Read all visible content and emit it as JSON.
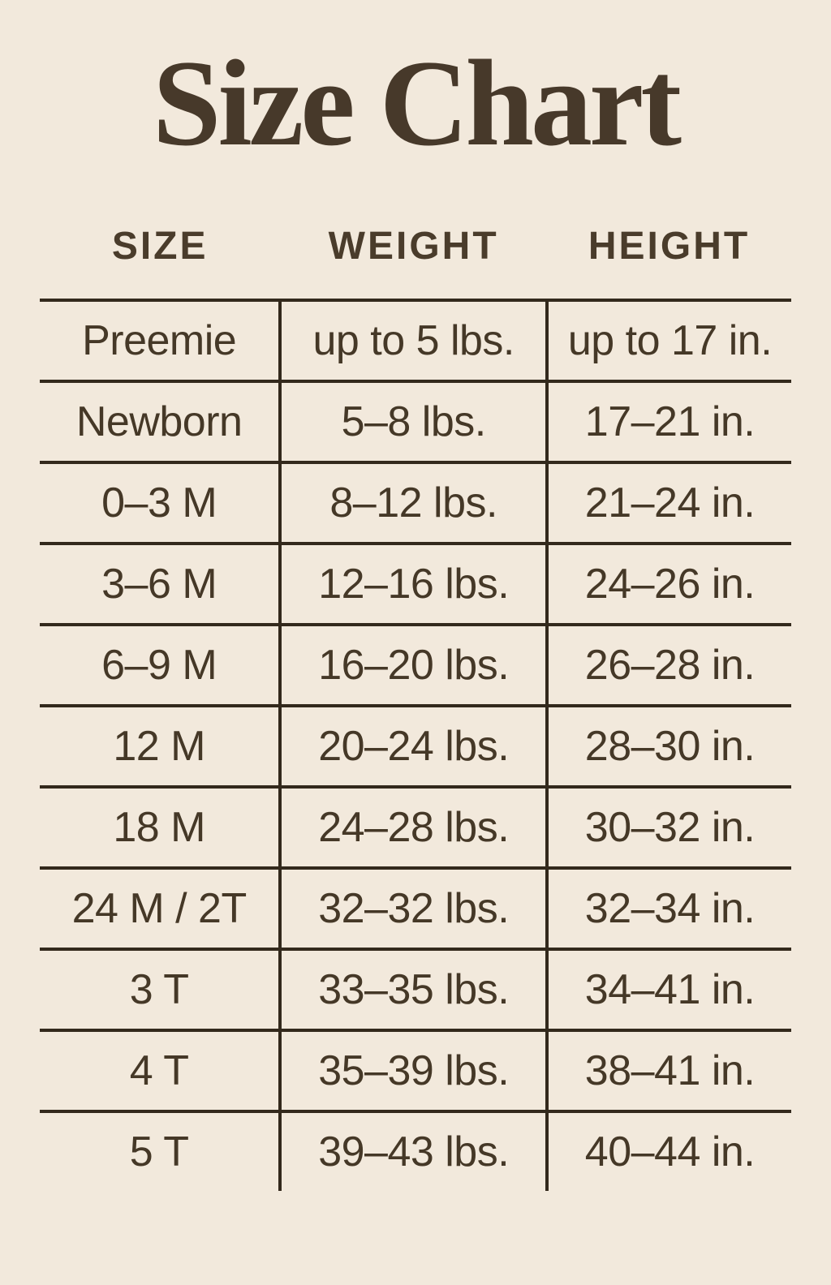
{
  "page": {
    "title": "Size Chart"
  },
  "colors": {
    "background": "#f2e9dc",
    "title_text": "#47392a",
    "header_text": "#4a3c2b",
    "cell_text": "#453827",
    "grid_line": "#33291c"
  },
  "chart_data": {
    "type": "table",
    "title": "Size Chart",
    "columns": [
      "SIZE",
      "WEIGHT",
      "HEIGHT"
    ],
    "rows": [
      [
        "Preemie",
        "up to 5 lbs.",
        "up to 17 in."
      ],
      [
        "Newborn",
        "5–8 lbs.",
        "17–21 in."
      ],
      [
        "0–3 M",
        "8–12 lbs.",
        "21–24 in."
      ],
      [
        "3–6 M",
        "12–16 lbs.",
        "24–26 in."
      ],
      [
        "6–9 M",
        "16–20 lbs.",
        "26–28 in."
      ],
      [
        "12 M",
        "20–24 lbs.",
        "28–30 in."
      ],
      [
        "18 M",
        "24–28 lbs.",
        "30–32 in."
      ],
      [
        "24 M / 2T",
        "32–32 lbs.",
        "32–34 in."
      ],
      [
        "3 T",
        "33–35 lbs.",
        "34–41 in."
      ],
      [
        "4 T",
        "35–39 lbs.",
        "38–41 in."
      ],
      [
        "5 T",
        "39–43 lbs.",
        "40–44 in."
      ]
    ],
    "layout": {
      "grid": "horizontal rules between all rows; vertical rules between columns only in body; no outer border",
      "header_style": "bold uppercase sans-serif",
      "title_style": "large bold serif"
    }
  }
}
